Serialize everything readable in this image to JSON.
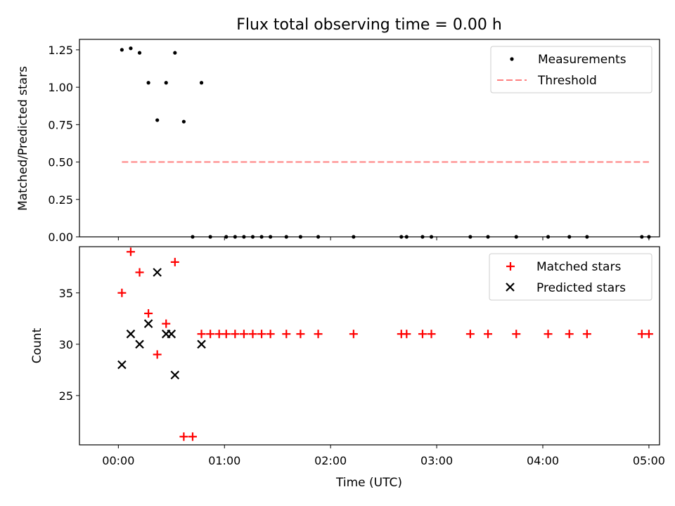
{
  "title": "Flux total observing time = 0.00 h",
  "colors": {
    "measure": "#000000",
    "threshold": "#ff7f7f",
    "matched": "#ff0000",
    "predicted": "#000000"
  },
  "chart_data": [
    {
      "type": "scatter",
      "ylabel": "Matched/Predicted stars",
      "xlim_minutes": [
        -22,
        306
      ],
      "ylim": [
        0,
        1.32
      ],
      "yticks": [
        "0.00",
        "0.25",
        "0.50",
        "0.75",
        "1.00",
        "1.25"
      ],
      "ytick_values": [
        0,
        0.25,
        0.5,
        0.75,
        1.0,
        1.25
      ],
      "grid": false,
      "legend_position": "top-right",
      "legend": [
        "Measurements",
        "Threshold"
      ],
      "series": [
        {
          "name": "Measurements",
          "kind": "dots",
          "x": [
            "00:02",
            "00:07",
            "00:12",
            "00:17",
            "00:22",
            "00:27",
            "00:32",
            "00:37",
            "00:47",
            "00:42",
            "00:52",
            "01:01",
            "01:06",
            "01:11",
            "01:16",
            "01:21",
            "01:26",
            "01:35",
            "01:43",
            "01:53",
            "02:13",
            "02:40",
            "02:43",
            "02:52",
            "02:57",
            "03:19",
            "03:29",
            "03:45",
            "04:03",
            "04:15",
            "04:25",
            "04:56",
            "05:00"
          ],
          "y": [
            1.25,
            1.26,
            1.23,
            1.03,
            0.78,
            1.03,
            1.23,
            0.77,
            1.03,
            0,
            0,
            0,
            0,
            0,
            0,
            0,
            0,
            0,
            0,
            0,
            0,
            0,
            0,
            0,
            0,
            0,
            0,
            0,
            0,
            0,
            0,
            0,
            0
          ]
        },
        {
          "name": "Threshold",
          "kind": "dashed-line",
          "x": [
            "00:02",
            "05:00"
          ],
          "y": [
            0.5,
            0.5
          ]
        }
      ]
    },
    {
      "type": "scatter",
      "xlabel": "Time (UTC)",
      "ylabel": "Count",
      "xticks": [
        "00:00",
        "01:00",
        "02:00",
        "03:00",
        "04:00",
        "05:00"
      ],
      "xlim_minutes": [
        -22,
        306
      ],
      "ylim": [
        20.2,
        39.5
      ],
      "yticks": [
        "25",
        "30",
        "35"
      ],
      "ytick_values": [
        25,
        30,
        35
      ],
      "grid": false,
      "legend_position": "top-right",
      "legend": [
        "Matched stars",
        "Predicted stars"
      ],
      "series": [
        {
          "name": "Matched stars",
          "kind": "plus",
          "x": [
            "00:02",
            "00:07",
            "00:12",
            "00:17",
            "00:22",
            "00:27",
            "00:32",
            "00:37",
            "00:42",
            "00:47",
            "00:52",
            "00:57",
            "01:01",
            "01:06",
            "01:11",
            "01:16",
            "01:21",
            "01:26",
            "01:35",
            "01:43",
            "01:53",
            "02:13",
            "02:40",
            "02:43",
            "02:52",
            "02:57",
            "03:19",
            "03:29",
            "03:45",
            "04:03",
            "04:15",
            "04:25",
            "04:56",
            "05:00"
          ],
          "y": [
            35,
            39,
            37,
            33,
            29,
            32,
            38,
            21,
            21,
            31,
            31,
            31,
            31,
            31,
            31,
            31,
            31,
            31,
            31,
            31,
            31,
            31,
            31,
            31,
            31,
            31,
            31,
            31,
            31,
            31,
            31,
            31,
            31,
            31
          ]
        },
        {
          "name": "Predicted stars",
          "kind": "cross",
          "x": [
            "00:02",
            "00:07",
            "00:12",
            "00:17",
            "00:22",
            "00:27",
            "00:30",
            "00:32",
            "00:47"
          ],
          "y": [
            28,
            31,
            30,
            32,
            37,
            31,
            31,
            27,
            30
          ]
        }
      ]
    }
  ]
}
